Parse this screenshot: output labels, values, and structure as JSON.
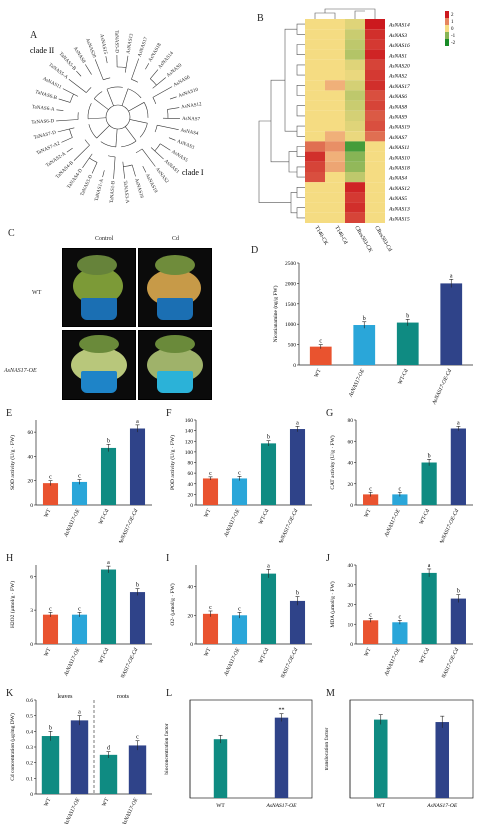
{
  "panels": {
    "A": {
      "label": "A",
      "clades": [
        "clade II",
        "clade I"
      ],
      "leaves": [
        "AsNAS20",
        "AsNAS15",
        "TaNAS5-D",
        "AsNAS13",
        "AsNAS17",
        "AsNAS18",
        "AsNAS14",
        "AsNAS9",
        "AsNAS6",
        "AsNAS10",
        "AsNAS12",
        "AsNAS7",
        "AsNAS4",
        "AsNAS3",
        "AsNAS5",
        "AsNAS1",
        "AsNAS2",
        "AsNAS19",
        "AsNAS16",
        "TaNAS3-A",
        "TaNAS1-B",
        "TaNAS1-A",
        "TaNAS3-D",
        "TaNAS4-D",
        "TaNAS4-B",
        "TaNAS2-A",
        "TaNAS7-A2",
        "TaNAS7-D",
        "TaNAS6-D",
        "TaNAS6-A",
        "TaNAS6-B",
        "AsNAS11",
        "TaNAS5-A",
        "TaNAS5-B",
        "AsNAS8"
      ]
    },
    "B": {
      "label": "B",
      "columns": [
        "T140-CK",
        "T140-Cd",
        "CRes503-CK",
        "CRes503-Cd"
      ],
      "rows": [
        "AsNAS14",
        "AsNAS3",
        "AsNAS16",
        "AsNAS1",
        "AsNAS20",
        "AsNAS2",
        "AsNAS17",
        "AsNAS6",
        "AsNAS8",
        "AsNAS9",
        "AsNAS19",
        "AsNAS7",
        "AsNAS11",
        "AsNAS10",
        "AsNAS18",
        "AsNAS4",
        "AsNAS12",
        "AsNAS5",
        "AsNAS13",
        "AsNAS15"
      ],
      "scale_ticks": [
        "2",
        "1",
        "0",
        "-1",
        "-2"
      ],
      "values": [
        [
          0.2,
          0.4,
          -0.2,
          2.0
        ],
        [
          0.1,
          0.3,
          -0.4,
          1.8
        ],
        [
          0.0,
          0.3,
          -0.5,
          1.7
        ],
        [
          0.3,
          0.2,
          -0.6,
          1.9
        ],
        [
          0.1,
          0.5,
          -0.2,
          1.6
        ],
        [
          0.2,
          0.4,
          -0.1,
          1.7
        ],
        [
          0.0,
          0.6,
          -0.3,
          1.8
        ],
        [
          0.1,
          0.4,
          -0.5,
          1.5
        ],
        [
          0.2,
          0.3,
          -0.4,
          1.6
        ],
        [
          0.0,
          0.2,
          -0.3,
          1.4
        ],
        [
          0.1,
          0.5,
          -0.2,
          1.5
        ],
        [
          0.3,
          0.6,
          -0.1,
          1.2
        ],
        [
          1.2,
          0.9,
          -1.6,
          0.4
        ],
        [
          1.8,
          0.6,
          -1.0,
          0.2
        ],
        [
          1.6,
          0.7,
          -0.9,
          0.3
        ],
        [
          1.5,
          0.4,
          -0.5,
          0.1
        ],
        [
          0.1,
          0.3,
          1.9,
          0.2
        ],
        [
          0.0,
          0.2,
          1.7,
          0.1
        ],
        [
          0.2,
          0.4,
          1.8,
          0.0
        ],
        [
          0.1,
          0.2,
          1.6,
          0.3
        ]
      ]
    },
    "C": {
      "label": "C",
      "col_labels": [
        "Control",
        "Cd"
      ],
      "row_labels": [
        "WT",
        "AsNAS17-OE"
      ]
    },
    "D": {
      "label": "D"
    },
    "E": {
      "label": "E"
    },
    "F": {
      "label": "F"
    },
    "G": {
      "label": "G"
    },
    "H": {
      "label": "H"
    },
    "I": {
      "label": "I"
    },
    "J": {
      "label": "J"
    },
    "K": {
      "label": "K",
      "groups": [
        "leaves",
        "roots"
      ]
    },
    "L": {
      "label": "L"
    },
    "M": {
      "label": "M"
    }
  },
  "colors": {
    "wt": "#e9532f",
    "oe": "#2aa6d9",
    "wtcd": "#0f8b82",
    "oecd": "#2f4389"
  },
  "chart_data": [
    {
      "id": "D",
      "type": "bar",
      "categories": [
        "WT",
        "AsNAS17-OE",
        "WT-Cd",
        "AsNAS17-OE-Cd"
      ],
      "values": [
        450,
        980,
        1040,
        2000
      ],
      "errors": [
        50,
        80,
        80,
        100
      ],
      "letters": [
        "c",
        "b",
        "b",
        "a"
      ],
      "ylabel": "Nicotianamine (ng/g FW)",
      "ylim": [
        0,
        2500
      ],
      "yticks": [
        0,
        500,
        1000,
        1500,
        2000,
        2500
      ]
    },
    {
      "id": "E",
      "type": "bar",
      "categories": [
        "WT",
        "AsNAS17-OE",
        "WT-Cd",
        "AsNAS17-OE-Cd"
      ],
      "values": [
        18,
        19,
        47,
        63
      ],
      "errors": [
        2,
        2,
        3,
        3
      ],
      "letters": [
        "c",
        "c",
        "b",
        "a"
      ],
      "ylabel": "SOD activity (U/g · FW)",
      "ylim": [
        0,
        70
      ],
      "yticks": [
        0,
        20,
        40,
        60
      ]
    },
    {
      "id": "F",
      "type": "bar",
      "categories": [
        "WT",
        "AsNAS17-OE",
        "WT-Cd",
        "AsNAS17-OE-Cd"
      ],
      "values": [
        50,
        50,
        116,
        143
      ],
      "errors": [
        3,
        4,
        5,
        5
      ],
      "letters": [
        "c",
        "c",
        "b",
        "a"
      ],
      "ylabel": "POD activity (U/g · FW)",
      "ylim": [
        0,
        160
      ],
      "yticks": [
        0,
        20,
        40,
        60,
        80,
        100,
        120,
        140,
        160
      ]
    },
    {
      "id": "G",
      "type": "bar",
      "categories": [
        "WT",
        "AsNAS17-OE",
        "WT-Cd",
        "AsNAS17-OE-Cd"
      ],
      "values": [
        10,
        10,
        40,
        72
      ],
      "errors": [
        2,
        2,
        3,
        2
      ],
      "letters": [
        "c",
        "c",
        "b",
        "a"
      ],
      "ylabel": "CAT activity (U/g · FW)",
      "ylim": [
        0,
        80
      ],
      "yticks": [
        0,
        20,
        40,
        60,
        80
      ]
    },
    {
      "id": "H",
      "type": "bar",
      "categories": [
        "WT",
        "AsNAS17-OE",
        "WT-Cd",
        "AsNAS17-OE-Cd"
      ],
      "values": [
        2.6,
        2.6,
        6.6,
        4.6
      ],
      "errors": [
        0.2,
        0.2,
        0.3,
        0.3
      ],
      "letters": [
        "c",
        "c",
        "a",
        "b"
      ],
      "ylabel": "H2O2 (μmol/g · FW)",
      "ylim": [
        0,
        7
      ],
      "yticks": [
        0,
        3,
        6
      ]
    },
    {
      "id": "I",
      "type": "bar",
      "categories": [
        "WT",
        "AsNAS17-OE",
        "WT-Cd",
        "AsNAS17-OE-Cd"
      ],
      "values": [
        21,
        20,
        49,
        30
      ],
      "errors": [
        2,
        2,
        3,
        3
      ],
      "letters": [
        "c",
        "c",
        "a",
        "b"
      ],
      "ylabel": "O2- (μmol/g · FW)",
      "ylim": [
        0,
        55
      ],
      "yticks": [
        0,
        20,
        40
      ]
    },
    {
      "id": "J",
      "type": "bar",
      "categories": [
        "WT",
        "AsNAS17-OE",
        "WT-Cd",
        "AsNAS17-OE-Cd"
      ],
      "values": [
        12,
        11,
        36,
        23
      ],
      "errors": [
        1,
        1,
        2,
        2
      ],
      "letters": [
        "c",
        "c",
        "a",
        "b"
      ],
      "ylabel": "MDA (μmol/g · FW)",
      "ylim": [
        0,
        40
      ],
      "yticks": [
        0,
        10,
        20,
        30,
        40
      ]
    },
    {
      "id": "K",
      "type": "bar",
      "categories": [
        "WT",
        "AsNAS17-OE",
        "WT",
        "AsNAS17-OE"
      ],
      "values": [
        0.37,
        0.47,
        0.25,
        0.31
      ],
      "errors": [
        0.03,
        0.03,
        0.02,
        0.03
      ],
      "letters": [
        "b",
        "a",
        "d",
        "c"
      ],
      "ylabel": "Cd concentration (μg/mg DW)",
      "ylim": [
        0,
        0.6
      ],
      "yticks": [
        0,
        0.1,
        0.2,
        0.3,
        0.4,
        0.5,
        0.6
      ],
      "colors": [
        "#0f8b82",
        "#2f4389",
        "#0f8b82",
        "#2f4389"
      ]
    },
    {
      "id": "L",
      "type": "bar",
      "categories": [
        "WT",
        "AsNAS17-OE"
      ],
      "values": [
        0.3,
        0.41
      ],
      "errors": [
        0.02,
        0.02
      ],
      "letters": [
        "",
        "**"
      ],
      "ylabel": "bioconcentration factor",
      "ylim": [
        0,
        0.5
      ],
      "yticks": [],
      "colors": [
        "#0f8b82",
        "#2f4389"
      ]
    },
    {
      "id": "M",
      "type": "bar",
      "categories": [
        "WT",
        "AsNAS17-OE"
      ],
      "values": [
        1.6,
        1.55
      ],
      "errors": [
        0.1,
        0.12
      ],
      "letters": [
        "",
        ""
      ],
      "ylabel": "translocation factor",
      "ylim": [
        0,
        2
      ],
      "yticks": [],
      "colors": [
        "#0f8b82",
        "#2f4389"
      ]
    }
  ]
}
